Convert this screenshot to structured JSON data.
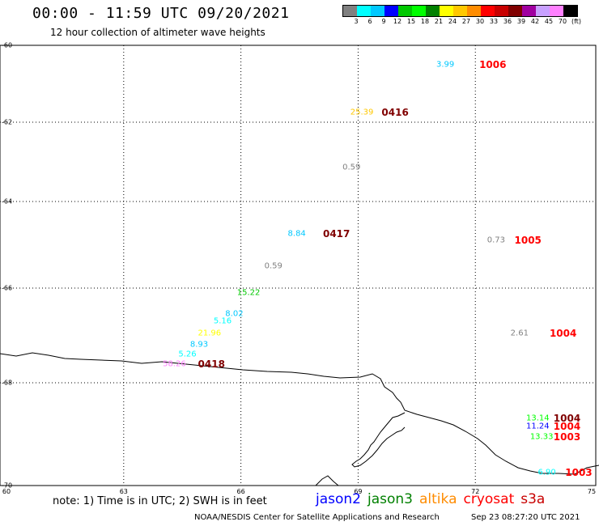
{
  "title": "00:00 - 11:59 UTC 09/20/2021",
  "subtitle": "12 hour collection of altimeter wave heights",
  "colorbar": {
    "colors": [
      "#808080",
      "#00ffff",
      "#00c8ff",
      "#0000ff",
      "#00c800",
      "#00ff00",
      "#008000",
      "#ffff00",
      "#ffc800",
      "#ff8c00",
      "#ff0000",
      "#c80000",
      "#800000",
      "#a000a0",
      "#c8a0ff",
      "#ff80ff",
      "#000000"
    ],
    "labels": [
      "3",
      "6",
      "9",
      "12",
      "15",
      "18",
      "21",
      "24",
      "27",
      "30",
      "33",
      "36",
      "39",
      "42",
      "45",
      "70",
      "(ft)"
    ]
  },
  "axes": {
    "lat_ticks": [
      "-60",
      "-62",
      "-64",
      "-66",
      "-68",
      "-70"
    ],
    "lon_ticks": [
      "60",
      "63",
      "66",
      "69",
      "72",
      "75"
    ],
    "lat_range": [
      -60,
      -70
    ],
    "lon_range": [
      60,
      75
    ]
  },
  "observations": [
    {
      "value": "3.99",
      "lon": 71.0,
      "lat": -60.5,
      "color": "#00c8ff"
    },
    {
      "value": "25.39",
      "lon": 68.8,
      "lat": -61.75,
      "color": "#ffc800"
    },
    {
      "value": "0.59",
      "lon": 68.6,
      "lat": -63.15,
      "color": "#808080"
    },
    {
      "value": "8.84",
      "lon": 67.2,
      "lat": -64.75,
      "color": "#00c8ff"
    },
    {
      "value": "0.73",
      "lon": 72.3,
      "lat": -64.9,
      "color": "#808080"
    },
    {
      "value": "0.59",
      "lon": 66.6,
      "lat": -65.5,
      "color": "#808080"
    },
    {
      "value": "15.22",
      "lon": 65.9,
      "lat": -66.1,
      "color": "#00c800"
    },
    {
      "value": "8.02",
      "lon": 65.6,
      "lat": -66.55,
      "color": "#00c8ff"
    },
    {
      "value": "5.16",
      "lon": 65.3,
      "lat": -66.7,
      "color": "#00ffff"
    },
    {
      "value": "21.96",
      "lon": 64.9,
      "lat": -66.95,
      "color": "#ffff00"
    },
    {
      "value": "2.61",
      "lon": 72.9,
      "lat": -66.95,
      "color": "#808080"
    },
    {
      "value": "8.93",
      "lon": 64.7,
      "lat": -67.2,
      "color": "#00c8ff"
    },
    {
      "value": "5.26",
      "lon": 64.4,
      "lat": -67.4,
      "color": "#00ffff"
    },
    {
      "value": "58.26",
      "lon": 64.0,
      "lat": -67.6,
      "color": "#ff80ff"
    },
    {
      "value": "13.14",
      "lon": 73.3,
      "lat": -68.7,
      "color": "#00ff00"
    },
    {
      "value": "11.24",
      "lon": 73.3,
      "lat": -68.85,
      "color": "#0000ff"
    },
    {
      "value": "13.33",
      "lon": 73.4,
      "lat": -69.05,
      "color": "#00ff00"
    },
    {
      "value": "6.90",
      "lon": 73.6,
      "lat": -69.75,
      "color": "#00ffff"
    }
  ],
  "cyclones": [
    {
      "label": "1006",
      "lon": 72.1,
      "lat": -60.5,
      "color": "#ff0000"
    },
    {
      "label": "0416",
      "lon": 69.6,
      "lat": -61.75,
      "color": "#800000"
    },
    {
      "label": "0417",
      "lon": 68.1,
      "lat": -64.75,
      "color": "#800000"
    },
    {
      "label": "1005",
      "lon": 73.0,
      "lat": -64.9,
      "color": "#ff0000"
    },
    {
      "label": "1004",
      "lon": 73.9,
      "lat": -66.95,
      "color": "#ff0000"
    },
    {
      "label": "0418",
      "lon": 64.9,
      "lat": -67.6,
      "color": "#800000"
    },
    {
      "label": "1004",
      "lon": 74.0,
      "lat": -68.7,
      "color": "#800000"
    },
    {
      "label": "1004",
      "lon": 74.0,
      "lat": -68.85,
      "color": "#ff0000"
    },
    {
      "label": "1003",
      "lon": 74.0,
      "lat": -69.05,
      "color": "#ff0000"
    },
    {
      "label": "1003",
      "lon": 74.3,
      "lat": -69.75,
      "color": "#ff0000"
    }
  ],
  "note": "note: 1) Time is in UTC; 2) SWH is in feet",
  "legend": [
    {
      "name": "jason2",
      "color": "#0000ff"
    },
    {
      "name": "jason3",
      "color": "#008000"
    },
    {
      "name": "altika",
      "color": "#ff8c00"
    },
    {
      "name": "cryosat",
      "color": "#ff0000"
    },
    {
      "name": "s3a",
      "color": "#c80000"
    }
  ],
  "credit": "NOAA/NESDIS Center for Satellite Applications and Research",
  "timestamp": "Sep 23 08:27:20 UTC 2021"
}
